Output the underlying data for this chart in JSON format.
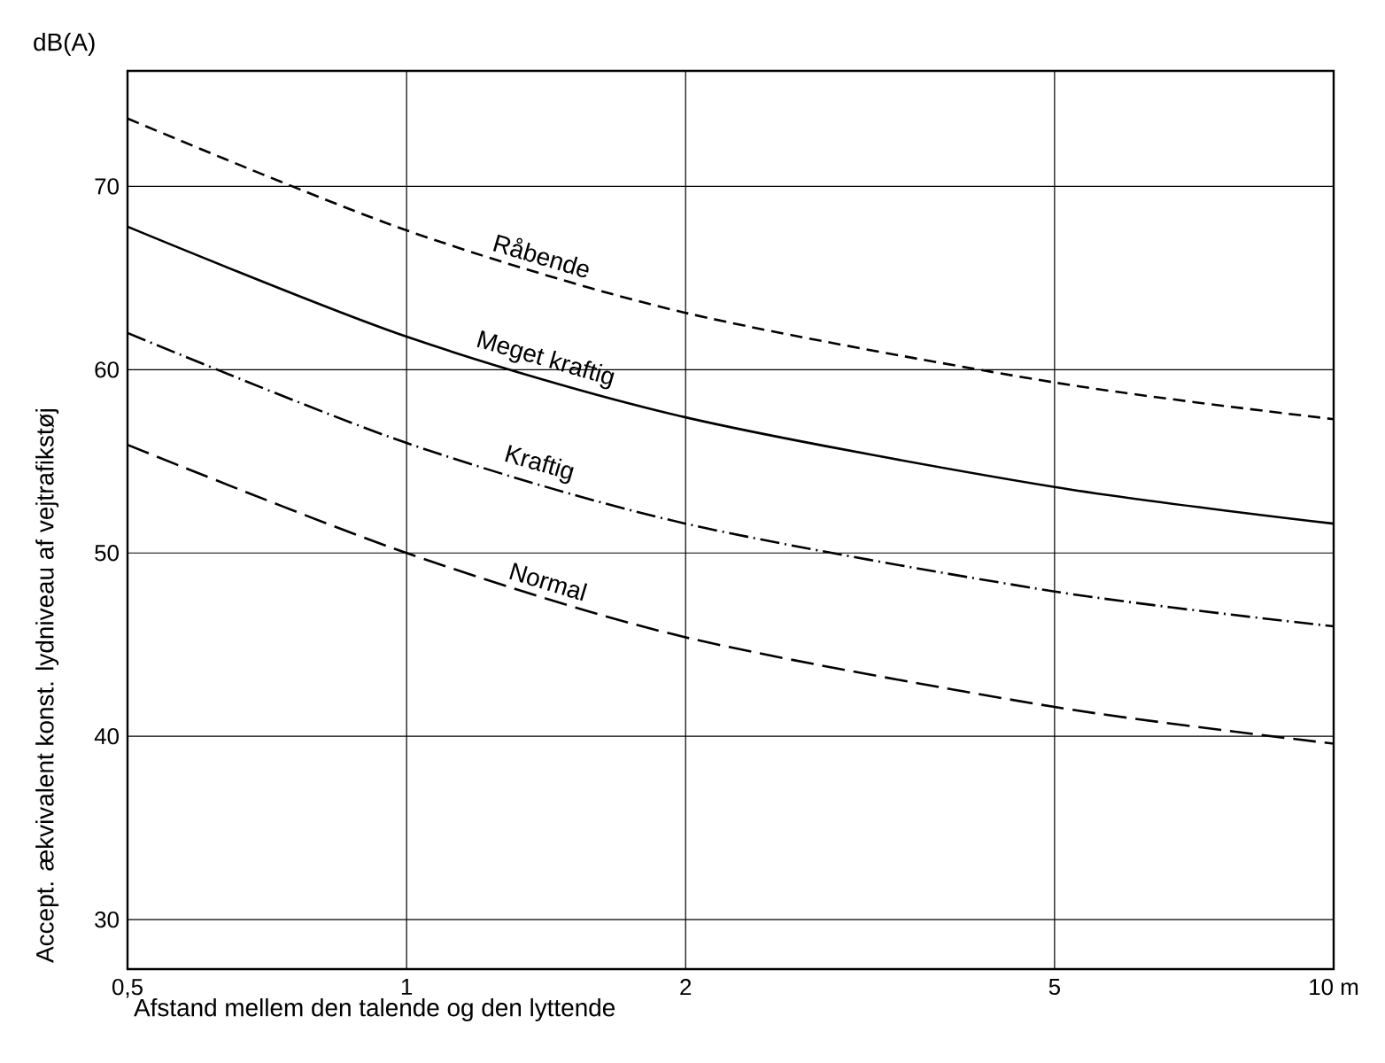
{
  "chart_data": {
    "type": "line",
    "xlabel": "Afstand mellem den talende og den lyttende",
    "ylabel": "Accept. ækvivalent konst. lydniveau af vejtrafikstøj",
    "annotations": [
      "dB(A)"
    ],
    "x": [
      0.5,
      1,
      2,
      5,
      10
    ],
    "series": [
      {
        "name": "Råbende",
        "color": "#000000",
        "line_style": "dashed",
        "values": [
          73.7,
          67.6,
          63.1,
          59.3,
          57.3
        ]
      },
      {
        "name": "Meget kraftig",
        "color": "#000000",
        "line_style": "solid",
        "values": [
          67.8,
          61.8,
          57.4,
          53.6,
          51.6
        ]
      },
      {
        "name": "Kraftig",
        "color": "#000000",
        "line_style": "dashdot",
        "values": [
          62.0,
          56.0,
          51.6,
          47.9,
          46.0
        ]
      },
      {
        "name": "Normal",
        "color": "#000000",
        "line_style": "longdash",
        "values": [
          55.9,
          50.0,
          45.4,
          41.6,
          39.6
        ]
      }
    ],
    "log": "x",
    "xlim": [
      0.5,
      10
    ],
    "ylim": [
      27.3,
      76.3
    ],
    "xticks": [
      {
        "value": 0.5,
        "label": "0,5"
      },
      1,
      2,
      5,
      {
        "value": 10,
        "label": "10 m"
      }
    ],
    "yticks": [
      30,
      40,
      50,
      60,
      70
    ],
    "grid": true,
    "legend": false,
    "marker": "none"
  }
}
